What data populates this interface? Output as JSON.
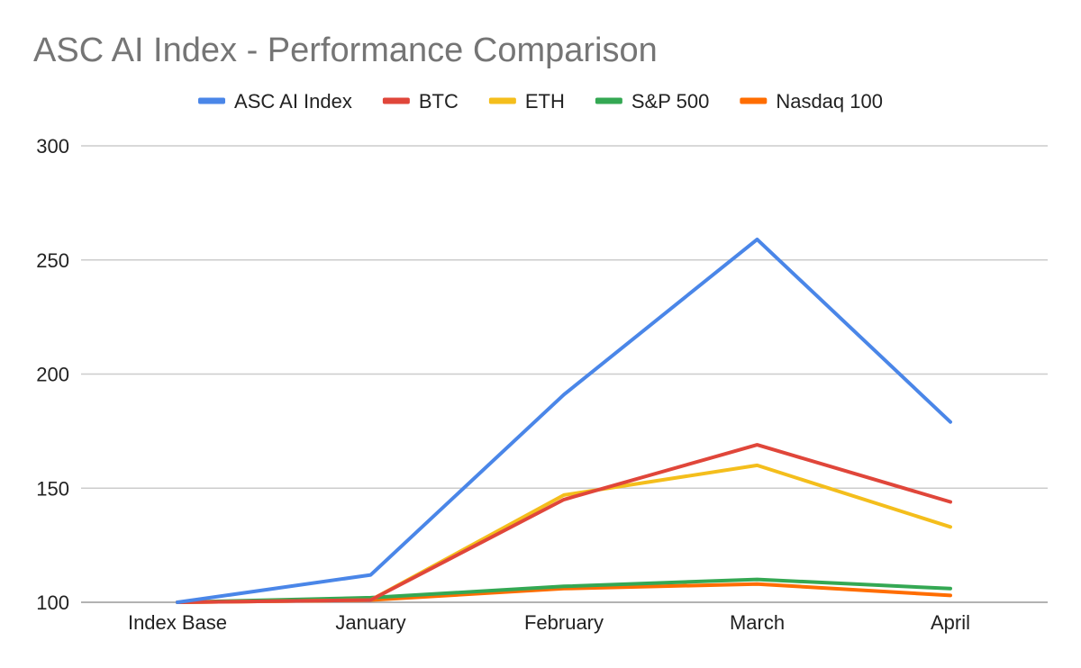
{
  "chart_data": {
    "type": "line",
    "title": "ASC AI Index - Performance Comparison",
    "xlabel": "",
    "ylabel": "",
    "categories": [
      "Index Base",
      "January",
      "February",
      "March",
      "April"
    ],
    "ylim": [
      100,
      300
    ],
    "yticks": [
      100,
      150,
      200,
      250,
      300
    ],
    "grid": true,
    "legend_position": "top",
    "series": [
      {
        "name": "ASC AI Index",
        "color": "#4a86e8",
        "values": [
          100,
          112,
          191,
          259,
          179
        ]
      },
      {
        "name": "BTC",
        "color": "#e0463a",
        "values": [
          100,
          101,
          145,
          169,
          144
        ]
      },
      {
        "name": "ETH",
        "color": "#f4be1c",
        "values": [
          100,
          101,
          147,
          160,
          133
        ]
      },
      {
        "name": "S&P 500",
        "color": "#34a853",
        "values": [
          100,
          102,
          107,
          110,
          106
        ]
      },
      {
        "name": "Nasdaq 100",
        "color": "#ff6d00",
        "values": [
          100,
          101,
          106,
          108,
          103
        ]
      }
    ]
  }
}
